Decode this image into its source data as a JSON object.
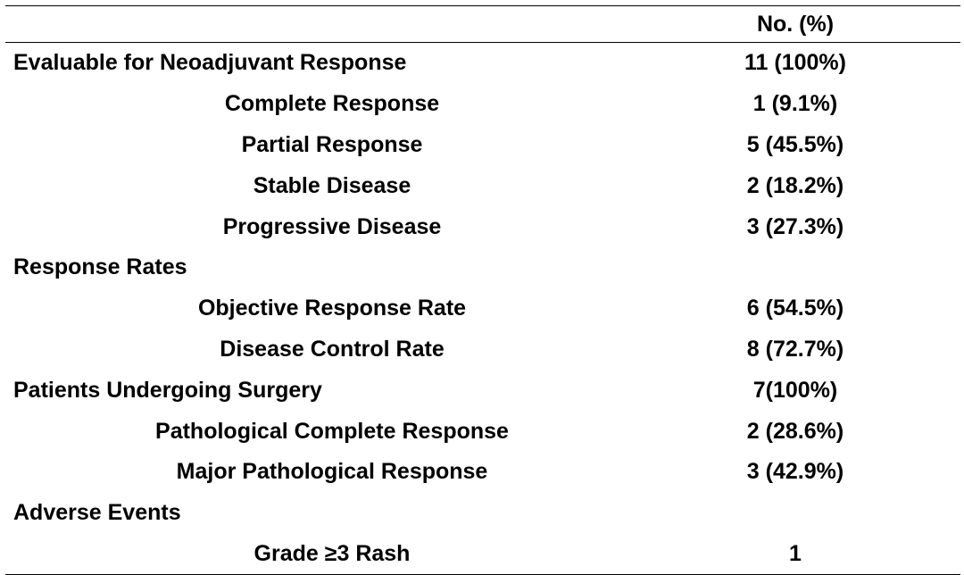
{
  "table": {
    "header": {
      "label": "",
      "value": "No. (%)"
    },
    "rows": [
      {
        "label": "Evaluable for Neoadjuvant Response",
        "value": "11 (100%)",
        "level": "section"
      },
      {
        "label": "Complete Response",
        "value": "1 (9.1%)",
        "level": "sub"
      },
      {
        "label": "Partial Response",
        "value": "5 (45.5%)",
        "level": "sub"
      },
      {
        "label": "Stable Disease",
        "value": "2 (18.2%)",
        "level": "sub"
      },
      {
        "label": "Progressive Disease",
        "value": "3 (27.3%)",
        "level": "sub"
      },
      {
        "label": "Response Rates",
        "value": "",
        "level": "section"
      },
      {
        "label": "Objective Response Rate",
        "value": "6 (54.5%)",
        "level": "sub"
      },
      {
        "label": "Disease Control Rate",
        "value": "8 (72.7%)",
        "level": "sub"
      },
      {
        "label": "Patients Undergoing Surgery",
        "value": "7(100%)",
        "level": "section"
      },
      {
        "label": "Pathological Complete Response",
        "value": "2 (28.6%)",
        "level": "sub"
      },
      {
        "label": "Major Pathological Response",
        "value": "3 (42.9%)",
        "level": "sub"
      },
      {
        "label": "Adverse Events",
        "value": "",
        "level": "section"
      },
      {
        "label": "Grade ≥3 Rash",
        "value": "1",
        "level": "sub"
      }
    ]
  }
}
